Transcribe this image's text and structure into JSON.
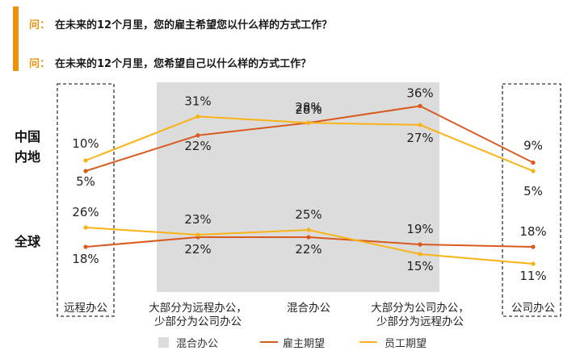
{
  "questions": [
    {
      "prefix": "问：",
      "text": "在未来的12个月里，您的雇主希望您以什么样的方式工作？"
    },
    {
      "prefix": "问：",
      "text": "在未来的12个月里，您希望自己以什么样的方式工作？"
    }
  ],
  "colors": {
    "accent": "#f0900a",
    "employer": "#d85a1f",
    "employee": "#f8b416",
    "hybrid_band": "#dcdcdc"
  },
  "chart_data": {
    "type": "line",
    "categories": [
      "远程办公",
      "大部分为远程办公，少部分为公司办公",
      "混合办公",
      "大部分为公司办公，少部分为远程办公",
      "公司办公"
    ],
    "category_lines": [
      [
        "远程办公"
      ],
      [
        "大部分为远程办公，",
        "少部分为公司办公"
      ],
      [
        "混合办公"
      ],
      [
        "大部分为公司办公，",
        "少部分为远程办公"
      ],
      [
        "公司办公"
      ]
    ],
    "groups": [
      {
        "label_lines": [
          "中国",
          "内地"
        ],
        "series": [
          {
            "key": "employer",
            "values": [
              5,
              22,
              28,
              36,
              9
            ]
          },
          {
            "key": "employee",
            "values": [
              10,
              31,
              28,
              27,
              5
            ]
          }
        ]
      },
      {
        "label_lines": [
          "全球"
        ],
        "series": [
          {
            "key": "employer",
            "values": [
              18,
              22,
              22,
              19,
              18
            ]
          },
          {
            "key": "employee",
            "values": [
              26,
              23,
              25,
              15,
              11
            ]
          }
        ]
      }
    ],
    "legend": [
      {
        "key": "band",
        "label": "混合办公"
      },
      {
        "key": "employer",
        "label": "雇主期望"
      },
      {
        "key": "employee",
        "label": "员工期望"
      }
    ]
  }
}
